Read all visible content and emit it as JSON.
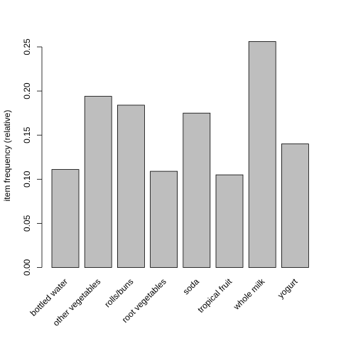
{
  "chart_data": {
    "type": "bar",
    "title": "",
    "xlabel": "",
    "ylabel": "item frequency (relative)",
    "categories": [
      "bottled water",
      "other vegetables",
      "rolls/buns",
      "root vegetables",
      "soda",
      "tropical fruit",
      "whole milk",
      "yogurt"
    ],
    "values": [
      0.111,
      0.194,
      0.184,
      0.109,
      0.175,
      0.105,
      0.256,
      0.14
    ],
    "ylim": [
      0,
      0.26
    ],
    "yticks": [
      "0.00",
      "0.05",
      "0.10",
      "0.15",
      "0.20",
      "0.25"
    ],
    "bar_color": "#bebebe",
    "grid": false,
    "legend": "none"
  }
}
